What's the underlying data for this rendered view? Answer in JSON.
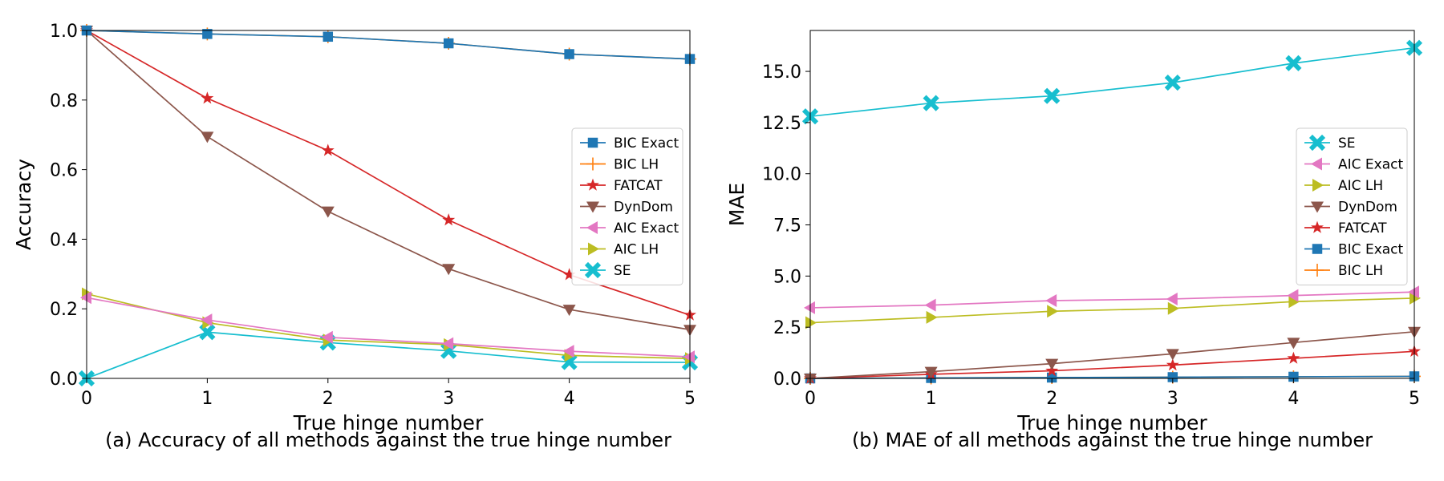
{
  "chart_data": [
    {
      "type": "line",
      "caption": "(a) Accuracy of all methods against the true hinge number",
      "xlabel": "True hinge number",
      "ylabel": "Accuracy",
      "x": [
        0,
        1,
        2,
        3,
        4,
        5
      ],
      "xlim": [
        0,
        5
      ],
      "ylim": [
        0,
        1.0
      ],
      "xticks": [
        "0",
        "1",
        "2",
        "3",
        "4",
        "5"
      ],
      "yticks": [
        "0.0",
        "0.2",
        "0.4",
        "0.6",
        "0.8",
        "1.0"
      ],
      "legend_position": "center-right",
      "series": [
        {
          "name": "BIC Exact",
          "color": "#1f77b4",
          "marker": "square",
          "values": [
            1.0,
            0.99,
            0.982,
            0.963,
            0.932,
            0.918
          ]
        },
        {
          "name": "BIC LH",
          "color": "#ff7f0e",
          "marker": "plus",
          "values": [
            1.0,
            0.99,
            0.982,
            0.963,
            0.932,
            0.918
          ]
        },
        {
          "name": "FATCAT",
          "color": "#d62728",
          "marker": "star",
          "values": [
            1.0,
            0.805,
            0.655,
            0.455,
            0.298,
            0.182
          ]
        },
        {
          "name": "DynDom",
          "color": "#8c564b",
          "marker": "triangle-down",
          "values": [
            1.0,
            0.695,
            0.48,
            0.315,
            0.198,
            0.14
          ]
        },
        {
          "name": "AIC Exact",
          "color": "#e377c2",
          "marker": "triangle-left",
          "values": [
            0.232,
            0.168,
            0.118,
            0.1,
            0.078,
            0.062
          ]
        },
        {
          "name": "AIC LH",
          "color": "#bcbd22",
          "marker": "triangle-right",
          "values": [
            0.243,
            0.16,
            0.11,
            0.097,
            0.066,
            0.057
          ]
        },
        {
          "name": "SE",
          "color": "#17becf",
          "marker": "x-filled",
          "values": [
            0.0,
            0.133,
            0.103,
            0.079,
            0.047,
            0.046
          ]
        }
      ]
    },
    {
      "type": "line",
      "caption": "(b) MAE of all methods against the true hinge number",
      "xlabel": "True hinge number",
      "ylabel": "MAE",
      "x": [
        0,
        1,
        2,
        3,
        4,
        5
      ],
      "xlim": [
        0,
        5
      ],
      "ylim": [
        0,
        17
      ],
      "xticks": [
        "0",
        "1",
        "2",
        "3",
        "4",
        "5"
      ],
      "yticks": [
        "0.0",
        "2.5",
        "5.0",
        "7.5",
        "10.0",
        "12.5",
        "15.0"
      ],
      "legend_position": "center-right",
      "series": [
        {
          "name": "SE",
          "color": "#17becf",
          "marker": "x-filled",
          "values": [
            12.8,
            13.45,
            13.8,
            14.45,
            15.4,
            16.15
          ]
        },
        {
          "name": "AIC Exact",
          "color": "#e377c2",
          "marker": "triangle-left",
          "values": [
            3.45,
            3.58,
            3.8,
            3.88,
            4.05,
            4.22
          ]
        },
        {
          "name": "AIC LH",
          "color": "#bcbd22",
          "marker": "triangle-right",
          "values": [
            2.72,
            2.98,
            3.28,
            3.42,
            3.75,
            3.92
          ]
        },
        {
          "name": "DynDom",
          "color": "#8c564b",
          "marker": "triangle-down",
          "values": [
            0.0,
            0.33,
            0.72,
            1.2,
            1.75,
            2.28
          ]
        },
        {
          "name": "FATCAT",
          "color": "#d62728",
          "marker": "star",
          "values": [
            0.0,
            0.2,
            0.37,
            0.65,
            0.98,
            1.32
          ]
        },
        {
          "name": "BIC Exact",
          "color": "#1f77b4",
          "marker": "square",
          "values": [
            0.0,
            0.02,
            0.04,
            0.06,
            0.08,
            0.1
          ]
        },
        {
          "name": "BIC LH",
          "color": "#ff7f0e",
          "marker": "plus",
          "values": [
            0.0,
            0.02,
            0.04,
            0.06,
            0.08,
            0.1
          ]
        }
      ]
    }
  ]
}
